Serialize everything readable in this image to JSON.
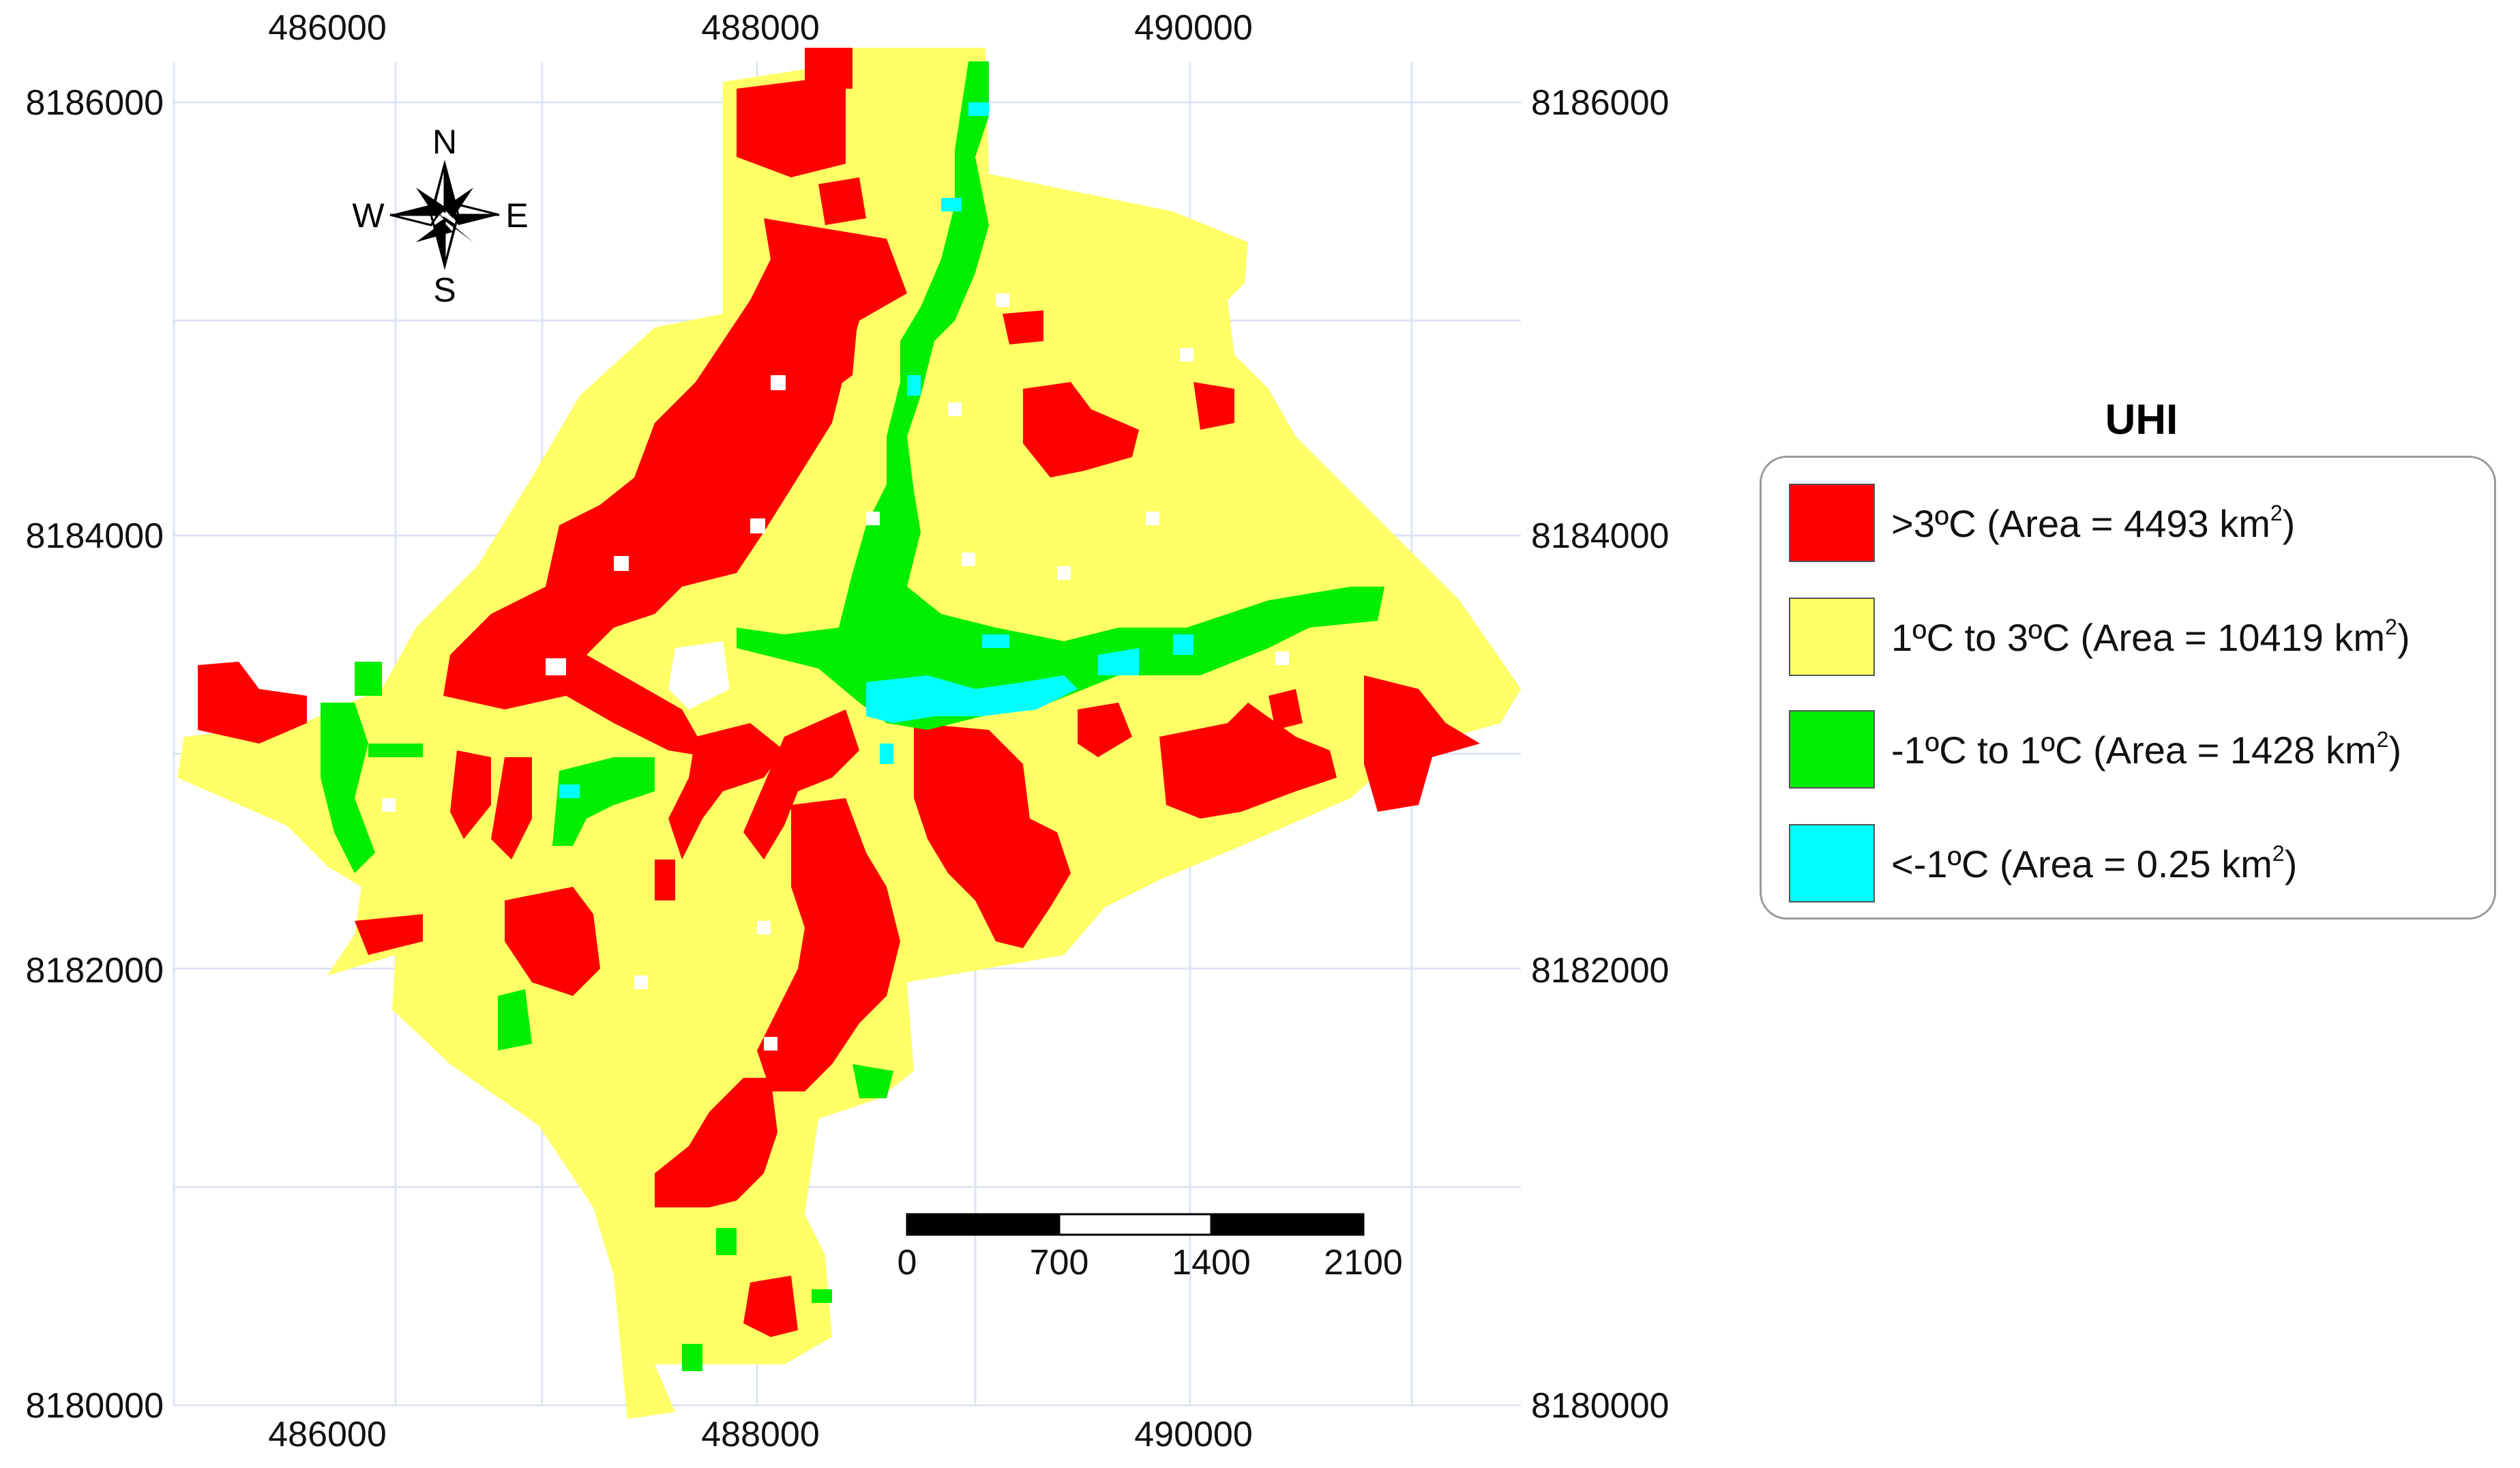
{
  "map": {
    "x_ticks": [
      "486000",
      "488000",
      "490000"
    ],
    "y_ticks": [
      "8186000",
      "8184000",
      "8182000",
      "8180000"
    ],
    "grid": true
  },
  "compass": {
    "north": "N",
    "south": "S",
    "east": "E",
    "west": "W"
  },
  "scale_bar": {
    "labels": [
      "0",
      "700",
      "1400",
      "2100"
    ]
  },
  "legend": {
    "title": "UHI",
    "items": [
      {
        "label": ">3ºC (Area = 4493 km",
        "unit_sup": "2",
        "suffix": ")",
        "color": "#ff0000"
      },
      {
        "label": "1ºC to 3ºC (Area = 10419 km",
        "unit_sup": "2",
        "suffix": ")",
        "color": "#ffff66"
      },
      {
        "label": "-1ºC to 1ºC (Area = 1428 km",
        "unit_sup": "2",
        "suffix": ")",
        "color": "#00ee00"
      },
      {
        "label": "<-1ºC (Area = 0.25 km",
        "unit_sup": "2",
        "suffix": ")",
        "color": "#00ffff"
      }
    ]
  }
}
